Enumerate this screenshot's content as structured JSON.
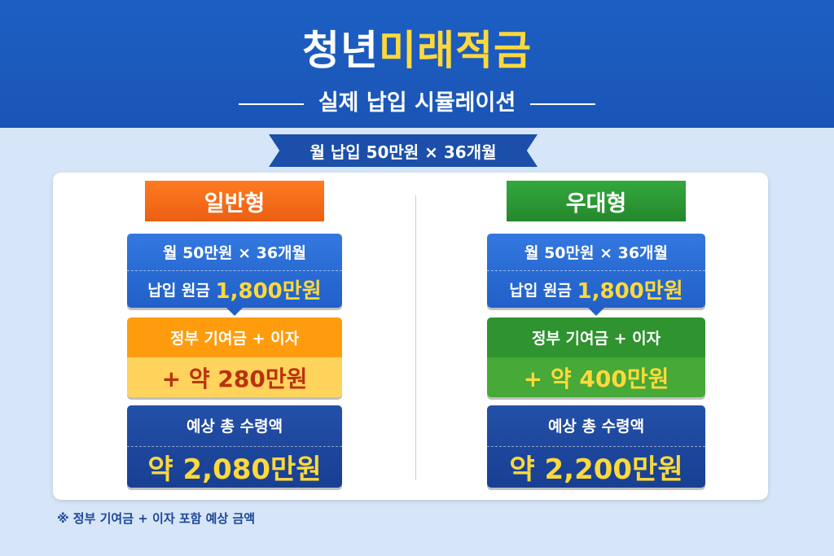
{
  "header": {
    "title_part1": "청년",
    "title_part2": "미래적금",
    "subtitle": "실제 납입 시뮬레이션"
  },
  "banner": "월 납입 50만원 × 36개월",
  "columns": [
    {
      "label": "일반형",
      "monthly": "월 50만원 × 36개월",
      "principal_label": "납입 원금",
      "principal": "1,800만원",
      "bonus_label": "정부 기여금 + 이자",
      "bonus": "+ 약 280만원",
      "total_label": "예상 총 수령액",
      "total": "약 2,080만원",
      "accent": "#f26a1b"
    },
    {
      "label": "우대형",
      "monthly": "월 50만원 × 36개월",
      "principal_label": "납입 원금",
      "principal": "1,800만원",
      "bonus_label": "정부 기여금 + 이자",
      "bonus": "+ 약 400만원",
      "total_label": "예상 총 수령액",
      "total": "약 2,200만원",
      "accent": "#2e9a36"
    }
  ],
  "footnote": "※ 정부 기여금 + 이자 포함 예상 금액"
}
